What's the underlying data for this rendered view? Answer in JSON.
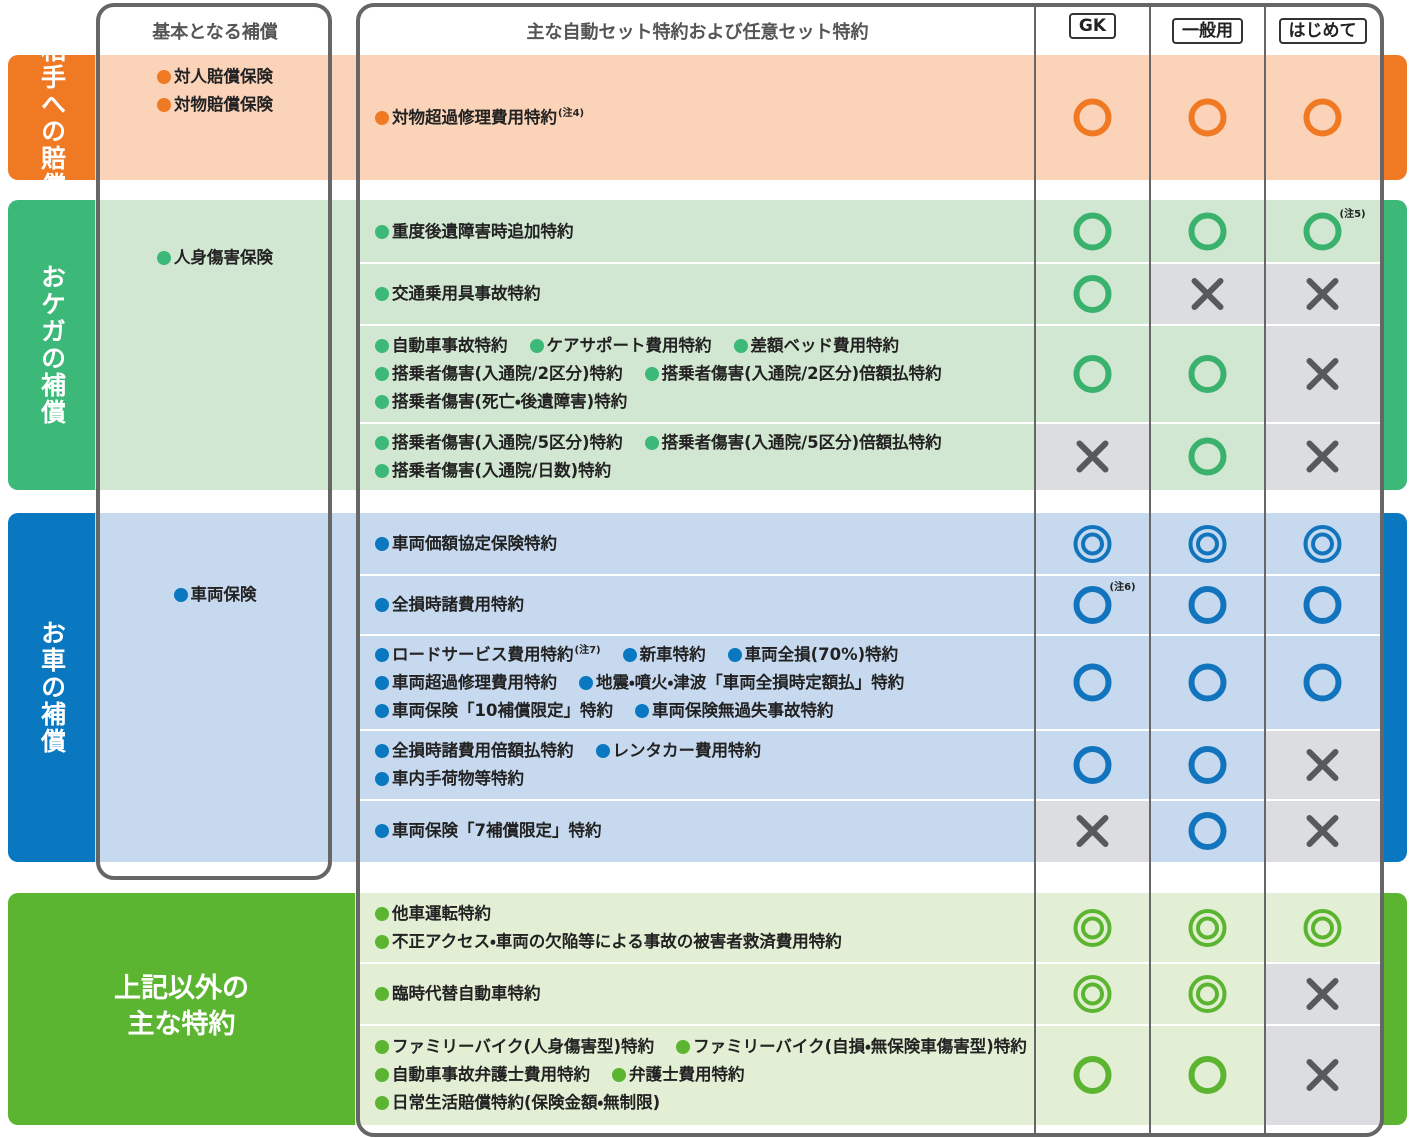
{
  "header": {
    "basic": "基本となる補償",
    "clauses": "主な自動セット特約および任意セット特約",
    "plans": [
      "GK",
      "一般用",
      "はじめて"
    ]
  },
  "sections": [
    {
      "label": "相手への賠償",
      "basic": [
        "対人賠償保険",
        "対物賠償保険"
      ],
      "rows": [
        {
          "lines": [
            [
              {
                "text": "対物超過修理費用特約",
                "note": "(注4)"
              }
            ]
          ],
          "marks": [
            "○",
            "○",
            "○"
          ]
        }
      ]
    },
    {
      "label": "おケガの補償",
      "basic": [
        "人身傷害保険"
      ],
      "rows": [
        {
          "lines": [
            [
              "重度後遺障害時追加特約"
            ]
          ],
          "marks": [
            "○",
            "○",
            {
              "symbol": "○",
              "note": "(注5)"
            }
          ]
        },
        {
          "lines": [
            [
              "交通乗用具事故特約"
            ]
          ],
          "marks": [
            "○",
            "×",
            "×"
          ]
        },
        {
          "lines": [
            [
              "自動車事故特約",
              "ケアサポート費用特約",
              "差額ベッド費用特約"
            ],
            [
              "搭乗者傷害(入通院/2区分)特約",
              "搭乗者傷害(入通院/2区分)倍額払特約"
            ],
            [
              "搭乗者傷害(死亡・後遺障害)特約"
            ]
          ],
          "marks": [
            "○",
            "○",
            "×"
          ]
        },
        {
          "lines": [
            [
              "搭乗者傷害(入通院/5区分)特約",
              "搭乗者傷害(入通院/5区分)倍額払特約"
            ],
            [
              "搭乗者傷害(入通院/日数)特約"
            ]
          ],
          "marks": [
            "×",
            "○",
            "×"
          ]
        }
      ]
    },
    {
      "label": "お車の補償",
      "basic": [
        "車両保険"
      ],
      "rows": [
        {
          "lines": [
            [
              "車両価額協定保険特約"
            ]
          ],
          "marks": [
            "◎",
            "◎",
            "◎"
          ]
        },
        {
          "lines": [
            [
              "全損時諸費用特約"
            ]
          ],
          "marks": [
            {
              "symbol": "○",
              "note": "(注6)"
            },
            "○",
            "○"
          ]
        },
        {
          "lines": [
            [
              {
                "text": "ロードサービス費用特約",
                "note": "(注7)"
              },
              "新車特約",
              "車両全損(70%)特約"
            ],
            [
              "車両超過修理費用特約",
              "地震・噴火・津波「車両全損時定額払」特約"
            ],
            [
              "車両保険「10補償限定」特約",
              "車両保険無過失事故特約"
            ]
          ],
          "marks": [
            "○",
            "○",
            "○"
          ]
        },
        {
          "lines": [
            [
              "全損時諸費用倍額払特約",
              "レンタカー費用特約"
            ],
            [
              "車内手荷物等特約"
            ]
          ],
          "marks": [
            "○",
            "○",
            "×"
          ]
        },
        {
          "lines": [
            [
              "車両保険「7補償限定」特約"
            ]
          ],
          "marks": [
            "×",
            "○",
            "×"
          ]
        }
      ]
    },
    {
      "label_lines": [
        "上記以外の",
        "主な特約"
      ],
      "rows": [
        {
          "lines": [
            [
              "他車運転特約"
            ],
            [
              "不正アクセス・車両の欠陥等による事故の被害者救済費用特約"
            ]
          ],
          "marks": [
            "◎",
            "◎",
            "◎"
          ]
        },
        {
          "lines": [
            [
              "臨時代替自動車特約"
            ]
          ],
          "marks": [
            "◎",
            "◎",
            "×"
          ]
        },
        {
          "lines": [
            [
              "ファミリーバイク(人身傷害型)特約",
              "ファミリーバイク(自損・無保険車傷害型)特約"
            ],
            [
              "自動車事故弁護士費用特約",
              "弁護士費用特約"
            ],
            [
              "日常生活賠償特約(保険金額・無制限)"
            ]
          ],
          "marks": [
            "○",
            "○",
            "×"
          ]
        }
      ]
    }
  ]
}
